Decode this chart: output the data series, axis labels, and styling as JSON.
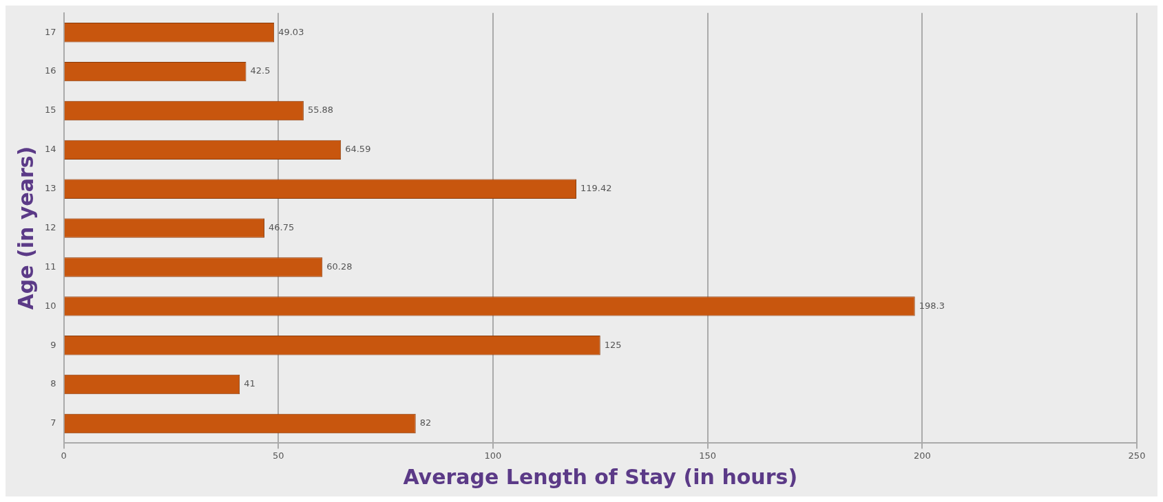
{
  "chart_data": {
    "type": "bar",
    "orientation": "horizontal",
    "xlabel": "Average Length of Stay (in hours)",
    "ylabel": "Age (in years)",
    "categories": [
      "17",
      "16",
      "15",
      "14",
      "13",
      "12",
      "11",
      "10",
      "9",
      "8",
      "7"
    ],
    "values": [
      49.03,
      42.5,
      55.88,
      64.59,
      119.42,
      46.75,
      60.28,
      198.3,
      125,
      41,
      82
    ],
    "color": "#c8560e",
    "xlim": [
      0,
      250
    ],
    "xticks": [
      0,
      50,
      100,
      150,
      200,
      250
    ],
    "grid": "x",
    "data_labels": true
  }
}
